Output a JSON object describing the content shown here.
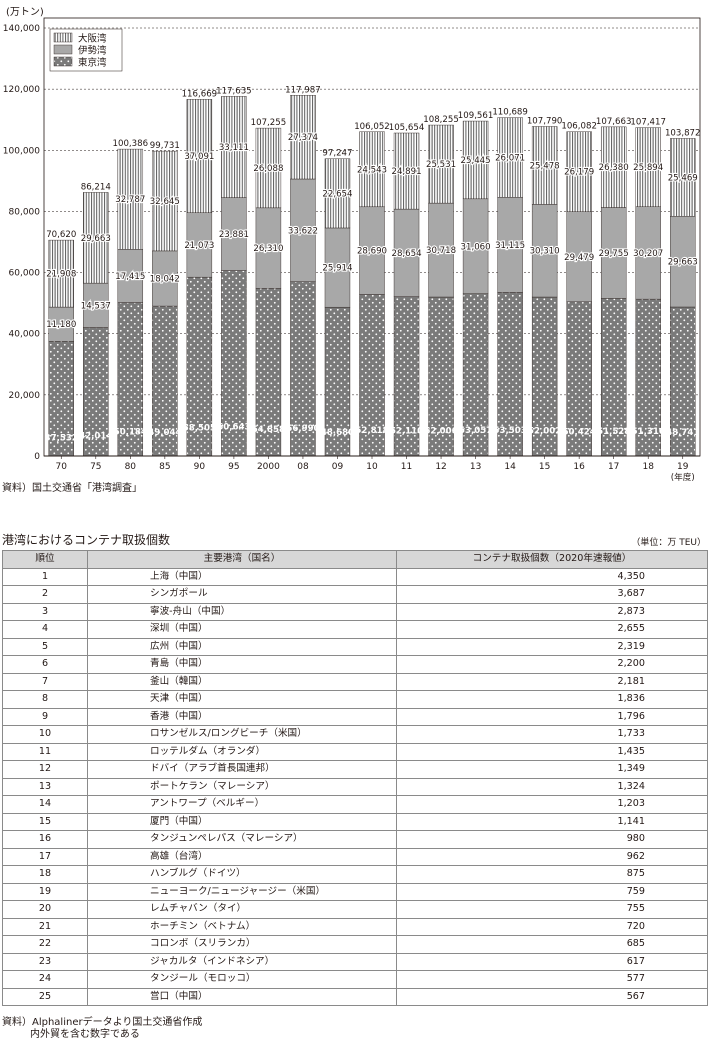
{
  "chart_data": {
    "type": "bar",
    "stacked": true,
    "unit_label": "(万トン)",
    "ylim": [
      0,
      140000
    ],
    "yticks": [
      "0",
      "20,000",
      "40,000",
      "60,000",
      "80,000",
      "100,000",
      "120,000",
      "140,000"
    ],
    "categories": [
      "70",
      "75",
      "80",
      "85",
      "90",
      "95",
      "2000",
      "08",
      "09",
      "10",
      "11",
      "12",
      "13",
      "14",
      "15",
      "16",
      "17",
      "18",
      "19"
    ],
    "x_unit_note": "(年度)",
    "series": [
      {
        "name": "東京湾",
        "values": [
          37532,
          42014,
          50184,
          49044,
          58505,
          60643,
          54858,
          56990,
          48680,
          52818,
          52110,
          52006,
          53057,
          53503,
          52002,
          50424,
          51528,
          51316,
          48741
        ],
        "labels": [
          "37,532",
          "42,014",
          "50,184",
          "49,044",
          "58,505",
          "60,643",
          "54,858",
          "56,990",
          "48,680",
          "52,818",
          "52,110",
          "52,006",
          "53,057",
          "53,503",
          "52,002",
          "50,424",
          "51,528",
          "51,316",
          "48,741"
        ]
      },
      {
        "name": "伊勢湾",
        "values": [
          11180,
          14537,
          17415,
          18042,
          21073,
          23881,
          26310,
          33622,
          25914,
          28690,
          28654,
          30718,
          31060,
          31115,
          30310,
          29479,
          29755,
          30207,
          29663
        ],
        "labels": [
          "11,180",
          "14,537",
          "17,415",
          "18,042",
          "21,073",
          "23,881",
          "26,310",
          "33,622",
          "25,914",
          "28,690",
          "28,654",
          "30,718",
          "31,060",
          "31,115",
          "30,310",
          "29,479",
          "29,755",
          "30,207",
          "29,663"
        ]
      },
      {
        "name": "大阪湾",
        "values": [
          21908,
          29663,
          32787,
          32645,
          37091,
          33111,
          26088,
          27374,
          22654,
          24543,
          24891,
          25531,
          25445,
          26071,
          25478,
          26179,
          26380,
          25894,
          25469
        ],
        "labels": [
          "21,908",
          "29,663",
          "32,787",
          "32,645",
          "37,091",
          "33,111",
          "26,088",
          "27,374",
          "22,654",
          "24,543",
          "24,891",
          "25,531",
          "25,445",
          "26,071",
          "25,478",
          "26,179",
          "26,380",
          "25,894",
          "25,469"
        ]
      }
    ],
    "totals": [
      70620,
      86214,
      100386,
      99731,
      116669,
      117635,
      107255,
      117987,
      97247,
      106052,
      105654,
      108255,
      109561,
      110689,
      107790,
      106082,
      107663,
      107417,
      103872
    ],
    "total_labels": [
      "70,620",
      "86,214",
      "100,386",
      "99,731",
      "116,669",
      "117,635",
      "107,255",
      "117,987",
      "97,247",
      "106,052",
      "105,654",
      "108,255",
      "109,561",
      "110,689",
      "107,790",
      "106,082",
      "107,663",
      "107,417",
      "103,872"
    ],
    "legend_position": "top-left",
    "colors": {
      "東京湾": "#7a7a7a",
      "伊勢湾": "#a8a8a8",
      "大阪湾": "#ffffff",
      "frame": "#231815"
    }
  },
  "chart_source": "資料）国土交通省「港湾調査」",
  "table": {
    "title": "港湾におけるコンテナ取扱個数",
    "unit": "（単位：万 TEU）",
    "headers": [
      "順位",
      "主要港湾（国名）",
      "コンテナ取扱個数（2020年速報値）"
    ],
    "rows": [
      [
        "1",
        "上海（中国）",
        "4,350"
      ],
      [
        "2",
        "シンガポール",
        "3,687"
      ],
      [
        "3",
        "寧波-舟山（中国）",
        "2,873"
      ],
      [
        "4",
        "深圳（中国）",
        "2,655"
      ],
      [
        "5",
        "広州（中国）",
        "2,319"
      ],
      [
        "6",
        "青島（中国）",
        "2,200"
      ],
      [
        "7",
        "釜山（韓国）",
        "2,181"
      ],
      [
        "8",
        "天津（中国）",
        "1,836"
      ],
      [
        "9",
        "香港（中国）",
        "1,796"
      ],
      [
        "10",
        "ロサンゼルス/ロングビーチ（米国）",
        "1,733"
      ],
      [
        "11",
        "ロッテルダム（オランダ）",
        "1,435"
      ],
      [
        "12",
        "ドバイ（アラブ首長国連邦）",
        "1,349"
      ],
      [
        "13",
        "ポートケラン（マレーシア）",
        "1,324"
      ],
      [
        "14",
        "アントワープ（ベルギー）",
        "1,203"
      ],
      [
        "15",
        "厦門（中国）",
        "1,141"
      ],
      [
        "16",
        "タンジュンペレパス（マレーシア）",
        "980"
      ],
      [
        "17",
        "高雄（台湾）",
        "962"
      ],
      [
        "18",
        "ハンブルグ（ドイツ）",
        "875"
      ],
      [
        "19",
        "ニューヨーク/ニュージャージー（米国）",
        "759"
      ],
      [
        "20",
        "レムチャバン（タイ）",
        "755"
      ],
      [
        "21",
        "ホーチミン（ベトナム）",
        "720"
      ],
      [
        "22",
        "コロンボ（スリランカ）",
        "685"
      ],
      [
        "23",
        "ジャカルタ（インドネシア）",
        "617"
      ],
      [
        "24",
        "タンジール（モロッコ）",
        "577"
      ],
      [
        "25",
        "営口（中国）",
        "567"
      ]
    ]
  },
  "footer": {
    "line1": "資料）Alphalinerデータより国土交通省作成",
    "line2": "内外貿を含む数字である"
  }
}
